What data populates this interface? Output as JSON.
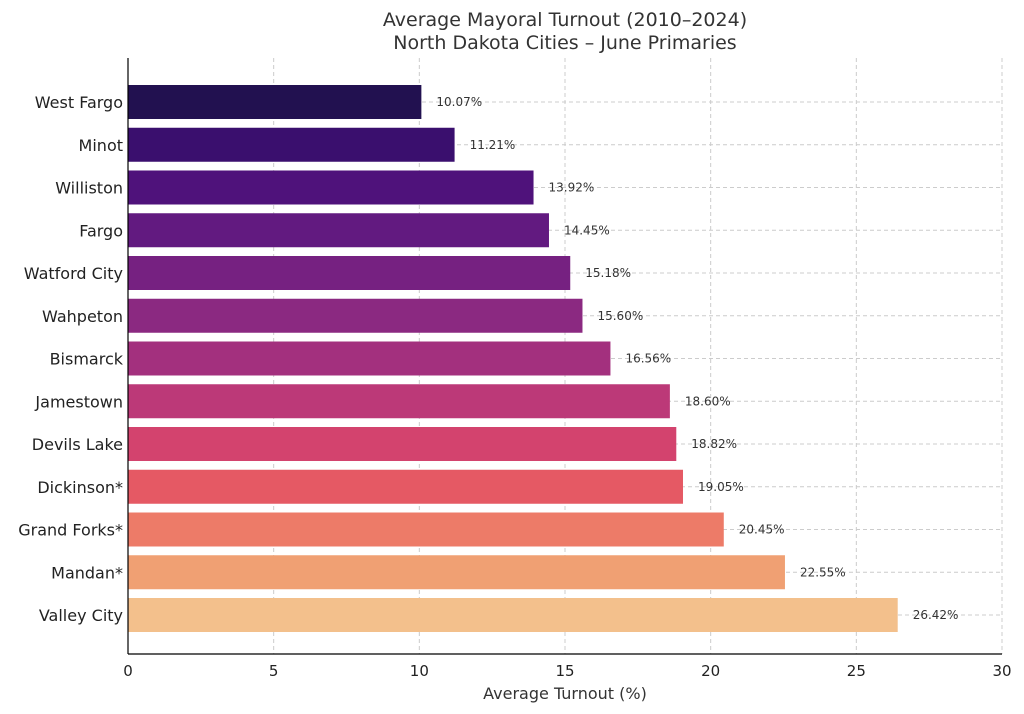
{
  "chart_data": {
    "type": "bar",
    "orientation": "horizontal",
    "title": "Average Mayoral Turnout (2010–2024)",
    "subtitle": "North Dakota Cities – June Primaries",
    "xlabel": "Average Turnout (%)",
    "ylabel": "",
    "xlim": [
      0,
      30
    ],
    "xticks": [
      0,
      5,
      10,
      15,
      20,
      25,
      30
    ],
    "grid": true,
    "categories": [
      "West Fargo",
      "Minot",
      "Williston",
      "Fargo",
      "Watford City",
      "Wahpeton",
      "Bismarck",
      "Jamestown",
      "Devils Lake",
      "Dickinson*",
      "Grand Forks*",
      "Mandan*",
      "Valley City"
    ],
    "values": [
      10.07,
      11.21,
      13.92,
      14.45,
      15.18,
      15.6,
      16.56,
      18.6,
      18.82,
      19.05,
      20.45,
      22.55,
      26.42
    ],
    "data_labels": [
      "10.07%",
      "11.21%",
      "13.92%",
      "14.45%",
      "15.18%",
      "15.60%",
      "16.56%",
      "18.60%",
      "18.82%",
      "19.05%",
      "20.45%",
      "22.55%",
      "26.42%"
    ],
    "colors": [
      "#221150",
      "#3a0f6e",
      "#4f127b",
      "#621a80",
      "#762181",
      "#8b2981",
      "#a3307e",
      "#bc3978",
      "#d3436e",
      "#e55964",
      "#ed7b68",
      "#f0a073",
      "#f3c08c"
    ]
  }
}
